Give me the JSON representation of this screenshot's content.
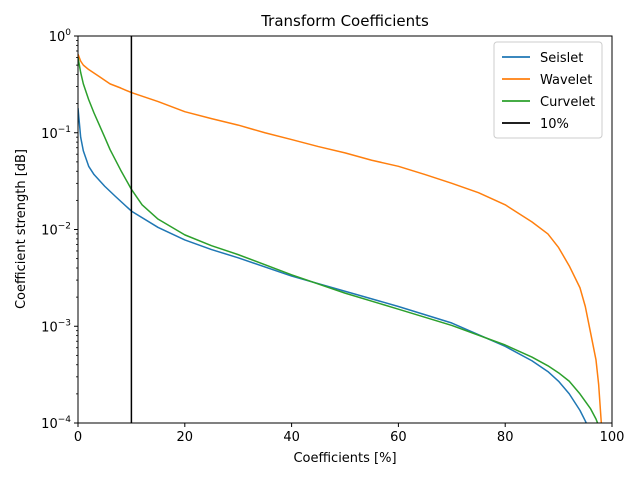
{
  "chart_data": {
    "type": "line",
    "title": "Transform Coefficients",
    "xlabel": "Coefficients [%]",
    "ylabel": "Coefficient strength [dB]",
    "xlim": [
      0,
      100
    ],
    "ylim": [
      0.0001,
      1
    ],
    "yscale": "log",
    "grid": false,
    "legend_position": "top-right",
    "x_ticks": [
      {
        "value": 0,
        "label": "0"
      },
      {
        "value": 20,
        "label": "20"
      },
      {
        "value": 40,
        "label": "40"
      },
      {
        "value": 60,
        "label": "60"
      },
      {
        "value": 80,
        "label": "80"
      },
      {
        "value": 100,
        "label": "100"
      }
    ],
    "y_ticks": [
      {
        "value": 0.0001,
        "base": "10",
        "exp": "−4"
      },
      {
        "value": 0.001,
        "base": "10",
        "exp": "−3"
      },
      {
        "value": 0.01,
        "base": "10",
        "exp": "−2"
      },
      {
        "value": 0.1,
        "base": "10",
        "exp": "−1"
      },
      {
        "value": 1,
        "base": "10",
        "exp": "0"
      }
    ],
    "series": [
      {
        "name": "Seislet",
        "color": "#1f77b4",
        "x": [
          0,
          0.5,
          1,
          2,
          3,
          5,
          7,
          10,
          15,
          20,
          25,
          30,
          40,
          50,
          60,
          70,
          80,
          85,
          88,
          90,
          92,
          94,
          95,
          96
        ],
        "y": [
          0.18,
          0.09,
          0.065,
          0.045,
          0.037,
          0.028,
          0.022,
          0.0155,
          0.0105,
          0.0078,
          0.0062,
          0.0051,
          0.0033,
          0.0023,
          0.0016,
          0.00108,
          0.00062,
          0.00044,
          0.00034,
          0.00027,
          0.0002,
          0.000135,
          0.000105,
          8e-05
        ]
      },
      {
        "name": "Wavelet",
        "color": "#ff7f0e",
        "x": [
          0,
          0.5,
          1,
          2,
          4,
          6,
          8,
          10,
          15,
          20,
          25,
          30,
          35,
          40,
          45,
          50,
          55,
          60,
          65,
          70,
          75,
          80,
          85,
          88,
          90,
          92,
          94,
          95,
          96,
          97,
          97.5,
          98
        ],
        "y": [
          0.65,
          0.55,
          0.5,
          0.45,
          0.38,
          0.32,
          0.29,
          0.26,
          0.21,
          0.165,
          0.14,
          0.12,
          0.1,
          0.085,
          0.072,
          0.062,
          0.052,
          0.045,
          0.037,
          0.03,
          0.024,
          0.018,
          0.012,
          0.009,
          0.0065,
          0.0042,
          0.0025,
          0.0016,
          0.00085,
          0.00045,
          0.00025,
          0.0001
        ]
      },
      {
        "name": "Curvelet",
        "color": "#2ca02c",
        "x": [
          0,
          0.5,
          1,
          2,
          3,
          4,
          5,
          6,
          8,
          10,
          12,
          15,
          20,
          25,
          30,
          40,
          50,
          60,
          70,
          80,
          85,
          88,
          90,
          92,
          94,
          96,
          97,
          98
        ],
        "y": [
          0.6,
          0.42,
          0.32,
          0.22,
          0.16,
          0.12,
          0.09,
          0.067,
          0.041,
          0.026,
          0.018,
          0.0128,
          0.0088,
          0.0068,
          0.0055,
          0.0034,
          0.0022,
          0.0015,
          0.00102,
          0.00064,
          0.00048,
          0.00039,
          0.00033,
          0.00027,
          0.0002,
          0.00014,
          0.00011,
          8e-05
        ]
      }
    ],
    "vline": {
      "name": "10%",
      "x": 10,
      "color": "#000000"
    }
  }
}
